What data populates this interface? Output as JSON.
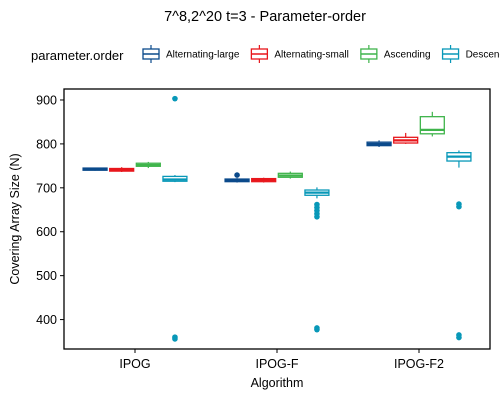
{
  "chart_data": {
    "type": "box",
    "title": "7^8,2^20 t=3 - Parameter-order",
    "xlabel": "Algorithm",
    "ylabel": "Covering Array Size (N)",
    "ylim": [
      333,
      925
    ],
    "yticks": [
      400,
      500,
      600,
      700,
      800,
      900
    ],
    "grid": false,
    "legend_placement": "top",
    "legend_title": "parameter.order",
    "categories": [
      "IPOG",
      "IPOG-F",
      "IPOG-F2"
    ],
    "series": [
      {
        "name": "Alternating-large",
        "color": "#0b4a8b",
        "boxes": [
          {
            "whisker_low": 739,
            "q1": 740,
            "median": 742,
            "q3": 745,
            "whisker_high": 746,
            "outliers": []
          },
          {
            "whisker_low": 712,
            "q1": 714,
            "median": 717,
            "q3": 720,
            "whisker_high": 722,
            "outliers": [
              729
            ]
          },
          {
            "whisker_low": 793,
            "q1": 796,
            "median": 800,
            "q3": 804,
            "whisker_high": 808,
            "outliers": []
          }
        ]
      },
      {
        "name": "Alternating-small",
        "color": "#e8171c",
        "boxes": [
          {
            "whisker_low": 736,
            "q1": 738,
            "median": 741,
            "q3": 744,
            "whisker_high": 747,
            "outliers": []
          },
          {
            "whisker_low": 712,
            "q1": 714,
            "median": 718,
            "q3": 721,
            "whisker_high": 723,
            "outliers": []
          },
          {
            "whisker_low": 800,
            "q1": 802,
            "median": 808,
            "q3": 815,
            "whisker_high": 825,
            "outliers": []
          }
        ]
      },
      {
        "name": "Ascending",
        "color": "#3fb44b",
        "boxes": [
          {
            "whisker_low": 745,
            "q1": 749,
            "median": 752,
            "q3": 756,
            "whisker_high": 759,
            "outliers": []
          },
          {
            "whisker_low": 721,
            "q1": 724,
            "median": 728,
            "q3": 733,
            "whisker_high": 737,
            "outliers": []
          },
          {
            "whisker_low": 817,
            "q1": 823,
            "median": 832,
            "q3": 862,
            "whisker_high": 873,
            "outliers": []
          }
        ]
      },
      {
        "name": "Descending",
        "color": "#0898b8",
        "boxes": [
          {
            "whisker_low": 713,
            "q1": 715,
            "median": 719,
            "q3": 726,
            "whisker_high": 729,
            "outliers": [
              903,
              360,
              356
            ]
          },
          {
            "whisker_low": 676,
            "q1": 683,
            "median": 689,
            "q3": 695,
            "whisker_high": 701,
            "outliers": [
              662,
              655,
              648,
              641,
              634,
              381,
              377
            ]
          },
          {
            "whisker_low": 746,
            "q1": 761,
            "median": 771,
            "q3": 780,
            "whisker_high": 785,
            "outliers": [
              663,
              657,
              365,
              359
            ]
          }
        ]
      }
    ]
  }
}
